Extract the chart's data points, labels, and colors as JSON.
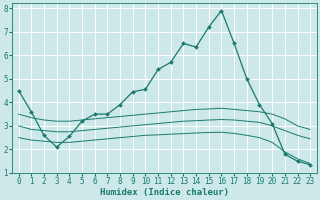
{
  "bg_color": "#cce8e8",
  "grid_color": "#ffffff",
  "line_color": "#1a7a6e",
  "xlabel": "Humidex (Indice chaleur)",
  "xlim": [
    -0.5,
    23.5
  ],
  "ylim": [
    1,
    8.2
  ],
  "yticks": [
    1,
    2,
    3,
    4,
    5,
    6,
    7,
    8
  ],
  "xticks": [
    0,
    1,
    2,
    3,
    4,
    5,
    6,
    7,
    8,
    9,
    10,
    11,
    12,
    13,
    14,
    15,
    16,
    17,
    18,
    19,
    20,
    21,
    22,
    23
  ],
  "line1_x": [
    0,
    1,
    2,
    3,
    4,
    5,
    6,
    7,
    8,
    9,
    10,
    11,
    12,
    13,
    14,
    15,
    16,
    17,
    18,
    19,
    20,
    21,
    22,
    23
  ],
  "line1_y": [
    4.5,
    3.6,
    2.6,
    2.1,
    2.55,
    3.2,
    3.5,
    3.5,
    3.9,
    4.45,
    4.55,
    5.4,
    5.7,
    6.5,
    6.35,
    7.2,
    7.9,
    6.5,
    5.0,
    3.9,
    3.1,
    1.8,
    1.5,
    1.35
  ],
  "line2_x": [
    0,
    1,
    2,
    3,
    4,
    5,
    6,
    7,
    8,
    9,
    10,
    11,
    12,
    13,
    14,
    15,
    16,
    17,
    18,
    19,
    20,
    21,
    22,
    23
  ],
  "line2_y": [
    3.5,
    3.35,
    3.25,
    3.2,
    3.2,
    3.25,
    3.3,
    3.35,
    3.4,
    3.45,
    3.5,
    3.55,
    3.6,
    3.65,
    3.7,
    3.72,
    3.75,
    3.7,
    3.65,
    3.6,
    3.5,
    3.3,
    3.0,
    2.85
  ],
  "line3_x": [
    0,
    1,
    2,
    3,
    4,
    5,
    6,
    7,
    8,
    9,
    10,
    11,
    12,
    13,
    14,
    15,
    16,
    17,
    18,
    19,
    20,
    21,
    22,
    23
  ],
  "line3_y": [
    3.0,
    2.85,
    2.8,
    2.75,
    2.75,
    2.8,
    2.85,
    2.9,
    2.95,
    3.0,
    3.05,
    3.1,
    3.15,
    3.2,
    3.22,
    3.25,
    3.27,
    3.25,
    3.2,
    3.15,
    3.0,
    2.8,
    2.6,
    2.45
  ],
  "line4_x": [
    0,
    1,
    2,
    3,
    4,
    5,
    6,
    7,
    8,
    9,
    10,
    11,
    12,
    13,
    14,
    15,
    16,
    17,
    18,
    19,
    20,
    21,
    22,
    23
  ],
  "line4_y": [
    2.5,
    2.4,
    2.35,
    2.3,
    2.3,
    2.35,
    2.4,
    2.45,
    2.5,
    2.55,
    2.6,
    2.62,
    2.65,
    2.67,
    2.7,
    2.72,
    2.73,
    2.68,
    2.6,
    2.5,
    2.3,
    1.9,
    1.6,
    1.4
  ]
}
